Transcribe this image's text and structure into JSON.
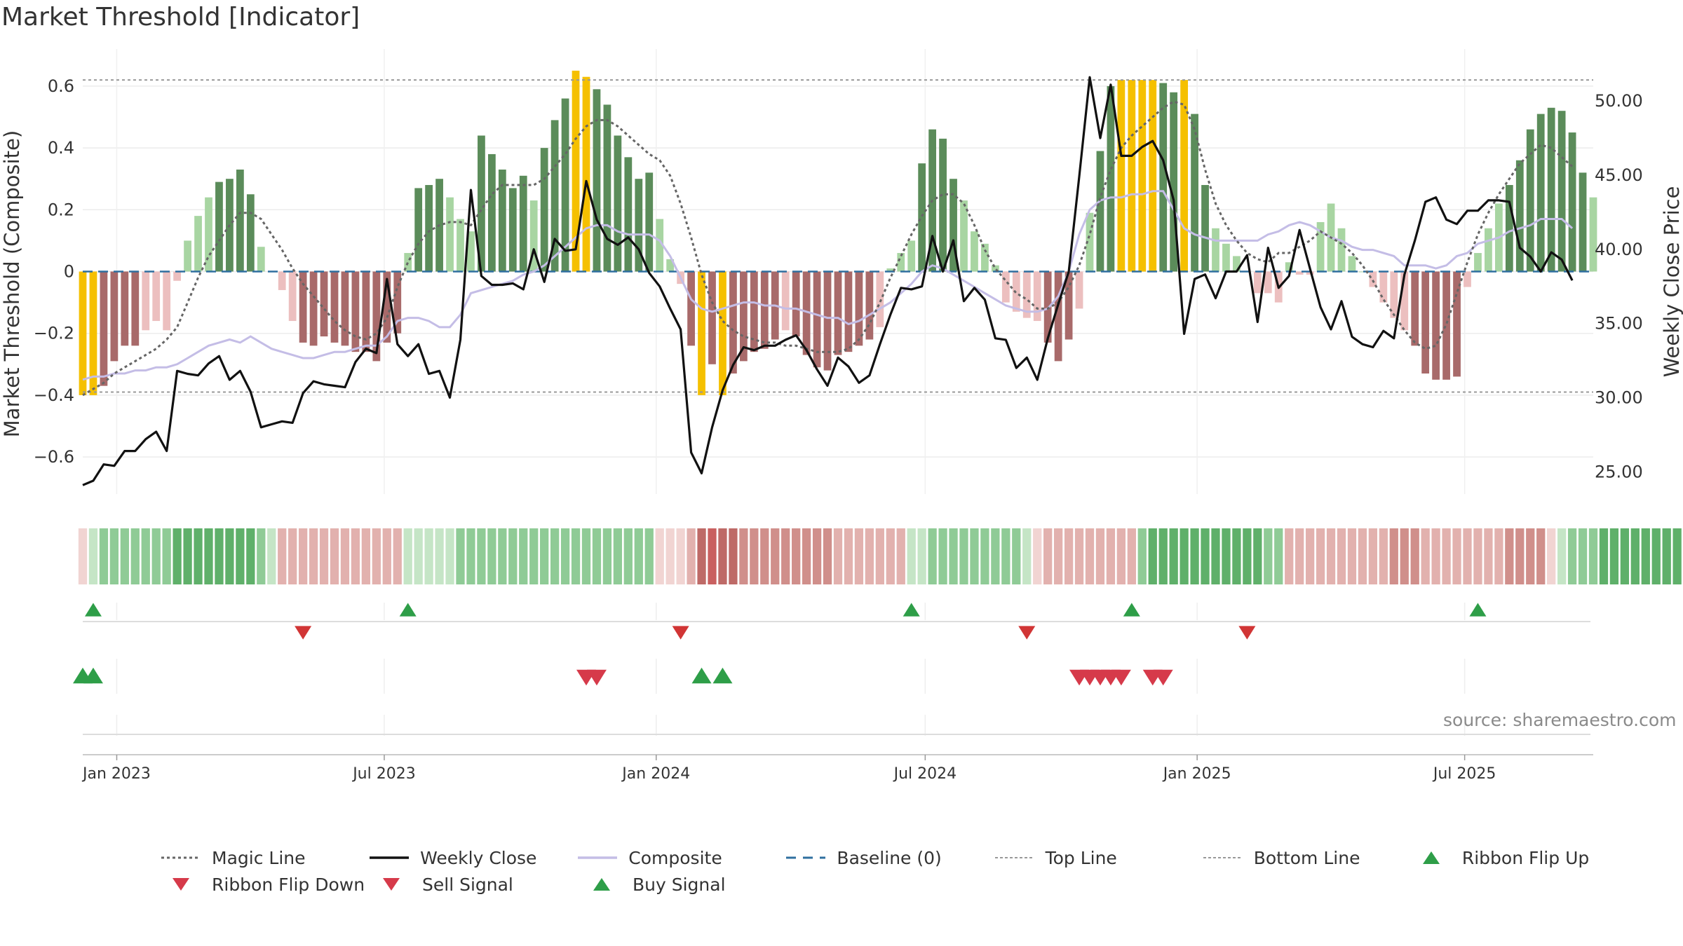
{
  "title": "Market Threshold [Indicator]",
  "source": "source: sharemaestro.com",
  "colors": {
    "bull_strong": "#5b8c5a",
    "bull_light": "#a8d5a2",
    "bear_strong": "#a86a6a",
    "bear_light": "#ecbfbf",
    "extreme": "#f5c000",
    "close": "#111111",
    "composite": "#c4bde6",
    "magic": "#666666",
    "baseline": "#2f6f9f",
    "buy": "#2e9e48",
    "sell": "#d63a4a"
  },
  "legend": [
    {
      "label": "Magic Line",
      "icon": "dotted-dark-line"
    },
    {
      "label": "Weekly Close",
      "icon": "solid-black-line"
    },
    {
      "label": "Composite",
      "icon": "solid-lavender-line"
    },
    {
      "label": "Baseline (0)",
      "icon": "dashed-blue-line"
    },
    {
      "label": "Top Line",
      "icon": "dotted-grey-line"
    },
    {
      "label": "Bottom Line",
      "icon": "dotted-grey-line"
    },
    {
      "label": "Ribbon Flip Up",
      "icon": "green-up-triangle"
    },
    {
      "label": "Ribbon Flip Down",
      "icon": "red-down-triangle"
    },
    {
      "label": "Sell Signal",
      "icon": "red-down-triangle"
    },
    {
      "label": "Buy Signal",
      "icon": "green-up-triangle"
    }
  ],
  "chart_data": {
    "type": "bar",
    "x_axis": {
      "type": "date",
      "start": "2022-12-09",
      "end": "2025-09-26",
      "ticks": [
        {
          "date": "2023-01-01",
          "label": "Jan 2023"
        },
        {
          "date": "2023-07-01",
          "label": "Jul 2023"
        },
        {
          "date": "2024-01-01",
          "label": "Jan 2024"
        },
        {
          "date": "2024-07-01",
          "label": "Jul 2024"
        },
        {
          "date": "2025-01-01",
          "label": "Jan 2025"
        },
        {
          "date": "2025-07-01",
          "label": "Jul 2025"
        }
      ]
    },
    "left_axis": {
      "title": "Market Threshold (Composite)",
      "range": [
        -0.72,
        0.72
      ],
      "ticks": [
        {
          "v": 0.6,
          "label": "0.6"
        },
        {
          "v": 0.4,
          "label": "0.4"
        },
        {
          "v": 0.2,
          "label": "0.2"
        },
        {
          "v": 0,
          "label": "0"
        },
        {
          "v": -0.2,
          "label": "−0.2"
        },
        {
          "v": -0.4,
          "label": "−0.4"
        },
        {
          "v": -0.6,
          "label": "−0.6"
        }
      ]
    },
    "right_axis": {
      "title": "Weekly Close Price",
      "range": [
        23.5,
        53.5
      ],
      "ticks": [
        {
          "v": 50,
          "label": "50.00"
        },
        {
          "v": 45,
          "label": "45.00"
        },
        {
          "v": 40,
          "label": "40.00"
        },
        {
          "v": 35,
          "label": "35.00"
        },
        {
          "v": 30,
          "label": "30.00"
        },
        {
          "v": 25,
          "label": "25.00"
        }
      ]
    },
    "top_line": 0.62,
    "bottom_line": -0.39,
    "grid": true,
    "legend_position": "bottom",
    "threshold_bars": [
      -0.4,
      -0.4,
      -0.37,
      -0.29,
      -0.24,
      -0.24,
      -0.19,
      -0.16,
      -0.19,
      -0.03,
      0.1,
      0.18,
      0.24,
      0.29,
      0.3,
      0.33,
      0.25,
      0.08,
      0.0,
      -0.06,
      -0.16,
      -0.23,
      -0.24,
      -0.21,
      -0.23,
      -0.24,
      -0.26,
      -0.26,
      -0.29,
      -0.23,
      -0.2,
      0.06,
      0.27,
      0.28,
      0.3,
      0.24,
      0.17,
      0.13,
      0.44,
      0.38,
      0.33,
      0.27,
      0.31,
      0.23,
      0.4,
      0.49,
      0.56,
      0.65,
      0.63,
      0.59,
      0.54,
      0.44,
      0.37,
      0.3,
      0.32,
      0.17,
      0.04,
      -0.04,
      -0.24,
      -0.4,
      -0.3,
      -0.4,
      -0.33,
      -0.29,
      -0.26,
      -0.25,
      -0.22,
      -0.19,
      -0.21,
      -0.27,
      -0.31,
      -0.32,
      -0.27,
      -0.26,
      -0.24,
      -0.22,
      -0.18,
      0.01,
      0.06,
      0.1,
      0.35,
      0.46,
      0.43,
      0.3,
      0.23,
      0.13,
      0.09,
      0.02,
      -0.1,
      -0.13,
      -0.15,
      -0.16,
      -0.23,
      -0.29,
      -0.22,
      -0.12,
      0.19,
      0.39,
      0.6,
      0.62,
      0.62,
      0.62,
      0.62,
      0.61,
      0.58,
      0.62,
      0.51,
      0.28,
      0.14,
      0.09,
      0.05,
      0.0,
      -0.07,
      -0.07,
      -0.1,
      0.03,
      -0.01,
      -0.01,
      0.16,
      0.22,
      0.14,
      0.05,
      0.0,
      -0.05,
      -0.1,
      -0.15,
      -0.19,
      -0.24,
      -0.33,
      -0.35,
      -0.35,
      -0.34,
      -0.05,
      0.06,
      0.14,
      0.22,
      0.28,
      0.36,
      0.46,
      0.51,
      0.53,
      0.52,
      0.45,
      0.32,
      0.24
    ],
    "weekly_close": [
      24.1,
      24.4,
      25.5,
      25.4,
      26.4,
      26.4,
      27.2,
      27.7,
      26.4,
      31.8,
      31.6,
      31.5,
      32.3,
      32.8,
      31.2,
      31.8,
      30.4,
      28.0,
      28.2,
      28.4,
      28.3,
      30.3,
      31.1,
      30.9,
      30.8,
      30.7,
      32.4,
      33.3,
      33.0,
      38.0,
      33.6,
      32.8,
      33.6,
      31.6,
      31.8,
      30.0,
      33.9,
      44.0,
      38.2,
      37.6,
      37.6,
      37.7,
      37.3,
      40.0,
      37.8,
      40.7,
      39.9,
      40.0,
      44.6,
      42.0,
      40.7,
      40.3,
      40.8,
      40.0,
      38.4,
      37.5,
      36.0,
      34.6,
      26.3,
      24.9,
      28.0,
      30.5,
      32.2,
      33.4,
      33.2,
      33.5,
      33.5,
      33.9,
      34.2,
      33.2,
      31.9,
      30.8,
      32.7,
      32.1,
      31.0,
      31.5,
      33.6,
      35.6,
      37.4,
      37.3,
      37.5,
      40.9,
      38.5,
      40.6,
      36.5,
      37.4,
      36.6,
      34.0,
      33.9,
      32.0,
      32.7,
      31.2,
      34.0,
      36.3,
      38.5,
      44.9,
      51.6,
      47.5,
      51.1,
      46.3,
      46.3,
      46.9,
      47.3,
      46.0,
      43.3,
      34.3,
      38.0,
      38.3,
      36.7,
      38.5,
      38.5,
      39.6,
      35.1,
      40.1,
      37.4,
      38.2,
      41.3,
      38.7,
      36.1,
      34.6,
      36.5,
      34.1,
      33.6,
      33.4,
      34.5,
      34.0,
      38.3,
      40.6,
      43.2,
      43.5,
      42.0,
      41.7,
      42.6,
      42.6,
      43.3,
      43.3,
      43.2,
      40.1,
      39.5,
      38.5,
      39.8,
      39.3,
      37.9
    ],
    "composite": [
      -0.35,
      -0.34,
      -0.34,
      -0.33,
      -0.33,
      -0.32,
      -0.32,
      -0.31,
      -0.31,
      -0.3,
      -0.28,
      -0.26,
      -0.24,
      -0.23,
      -0.22,
      -0.23,
      -0.21,
      -0.23,
      -0.25,
      -0.26,
      -0.27,
      -0.28,
      -0.28,
      -0.27,
      -0.26,
      -0.26,
      -0.25,
      -0.24,
      -0.24,
      -0.21,
      -0.16,
      -0.15,
      -0.15,
      -0.16,
      -0.18,
      -0.18,
      -0.14,
      -0.07,
      -0.06,
      -0.05,
      -0.04,
      -0.03,
      -0.01,
      0.0,
      0.02,
      0.05,
      0.08,
      0.11,
      0.14,
      0.15,
      0.15,
      0.13,
      0.12,
      0.12,
      0.12,
      0.1,
      0.05,
      -0.02,
      -0.09,
      -0.12,
      -0.13,
      -0.12,
      -0.11,
      -0.1,
      -0.1,
      -0.11,
      -0.11,
      -0.12,
      -0.12,
      -0.13,
      -0.14,
      -0.15,
      -0.15,
      -0.17,
      -0.16,
      -0.14,
      -0.12,
      -0.1,
      -0.07,
      -0.04,
      0.0,
      0.02,
      0.01,
      -0.01,
      -0.03,
      -0.05,
      -0.07,
      -0.09,
      -0.11,
      -0.12,
      -0.13,
      -0.13,
      -0.12,
      -0.08,
      0.0,
      0.12,
      0.2,
      0.23,
      0.24,
      0.24,
      0.25,
      0.25,
      0.26,
      0.26,
      0.2,
      0.14,
      0.12,
      0.11,
      0.1,
      0.1,
      0.1,
      0.1,
      0.1,
      0.12,
      0.13,
      0.15,
      0.16,
      0.15,
      0.13,
      0.11,
      0.1,
      0.08,
      0.07,
      0.07,
      0.06,
      0.05,
      0.02,
      0.02,
      0.02,
      0.01,
      0.02,
      0.05,
      0.06,
      0.09,
      0.1,
      0.11,
      0.13,
      0.14,
      0.15,
      0.17,
      0.17,
      0.17,
      0.14
    ],
    "magic_line": [
      -0.4,
      -0.38,
      -0.36,
      -0.33,
      -0.31,
      -0.29,
      -0.27,
      -0.25,
      -0.22,
      -0.18,
      -0.1,
      -0.02,
      0.05,
      0.1,
      0.15,
      0.19,
      0.19,
      0.17,
      0.12,
      0.07,
      0.01,
      -0.04,
      -0.08,
      -0.12,
      -0.16,
      -0.19,
      -0.21,
      -0.22,
      -0.2,
      -0.15,
      -0.05,
      0.03,
      0.09,
      0.13,
      0.15,
      0.16,
      0.16,
      0.15,
      0.2,
      0.25,
      0.28,
      0.28,
      0.28,
      0.28,
      0.3,
      0.34,
      0.38,
      0.43,
      0.47,
      0.49,
      0.49,
      0.47,
      0.44,
      0.41,
      0.38,
      0.36,
      0.31,
      0.22,
      0.11,
      -0.01,
      -0.1,
      -0.16,
      -0.19,
      -0.21,
      -0.22,
      -0.23,
      -0.23,
      -0.24,
      -0.24,
      -0.25,
      -0.26,
      -0.26,
      -0.26,
      -0.25,
      -0.22,
      -0.17,
      -0.1,
      -0.02,
      0.05,
      0.12,
      0.18,
      0.23,
      0.25,
      0.25,
      0.22,
      0.15,
      0.07,
      0.01,
      -0.03,
      -0.07,
      -0.09,
      -0.12,
      -0.12,
      -0.1,
      -0.05,
      0.02,
      0.12,
      0.24,
      0.33,
      0.4,
      0.44,
      0.47,
      0.5,
      0.53,
      0.55,
      0.54,
      0.46,
      0.33,
      0.22,
      0.15,
      0.1,
      0.06,
      0.04,
      0.03,
      0.06,
      0.06,
      0.08,
      0.1,
      0.13,
      0.11,
      0.09,
      0.06,
      0.02,
      -0.03,
      -0.09,
      -0.14,
      -0.19,
      -0.23,
      -0.25,
      -0.24,
      -0.17,
      -0.07,
      0.03,
      0.12,
      0.19,
      0.25,
      0.3,
      0.35,
      0.38,
      0.41,
      0.4,
      0.37,
      0.34
    ],
    "ribbon_levels": [
      -1,
      1,
      2,
      2,
      2,
      2,
      2,
      2,
      2,
      3,
      3,
      3,
      3,
      3,
      3,
      3,
      3,
      2,
      1,
      -2,
      -2,
      -2,
      -2,
      -2,
      -2,
      -2,
      -2,
      -2,
      -2,
      -2,
      -2,
      1,
      1,
      1,
      1,
      1,
      2,
      2,
      2,
      2,
      2,
      2,
      2,
      2,
      2,
      2,
      2,
      2,
      2,
      2,
      2,
      2,
      2,
      2,
      2,
      -1,
      -1,
      -1,
      -2,
      -4,
      0,
      -4,
      -4,
      -3,
      -3,
      -3,
      -3,
      -3,
      -3,
      -3,
      -3,
      -3,
      -2,
      -2,
      -2,
      -2,
      -2,
      -2,
      -2,
      1,
      1,
      2,
      2,
      2,
      2,
      2,
      2,
      2,
      2,
      2,
      1,
      -1,
      -2,
      -2,
      -2,
      -2,
      -2,
      -2,
      -2,
      -2,
      -2,
      2,
      3,
      3,
      3,
      3,
      3,
      3,
      3,
      3,
      3,
      3,
      3,
      2,
      2,
      -2,
      -2,
      -2,
      -2,
      -2,
      -2,
      -2,
      -2,
      -2,
      -2,
      -3,
      -3,
      -3,
      -2,
      -2,
      -2,
      -2,
      -2,
      -2,
      -2,
      -2,
      -3,
      -3,
      -3,
      -3,
      -1,
      1,
      2,
      2,
      2,
      3,
      3,
      3,
      3,
      3,
      3,
      3,
      3
    ],
    "ribbon_flip_up": [
      1,
      31,
      79,
      100,
      133
    ],
    "ribbon_flip_down": [
      21,
      57,
      90,
      111
    ],
    "buy_signals": [
      0,
      1,
      59,
      61
    ],
    "sell_signals": [
      48,
      49,
      95,
      96,
      97,
      98,
      99,
      102,
      103
    ]
  }
}
